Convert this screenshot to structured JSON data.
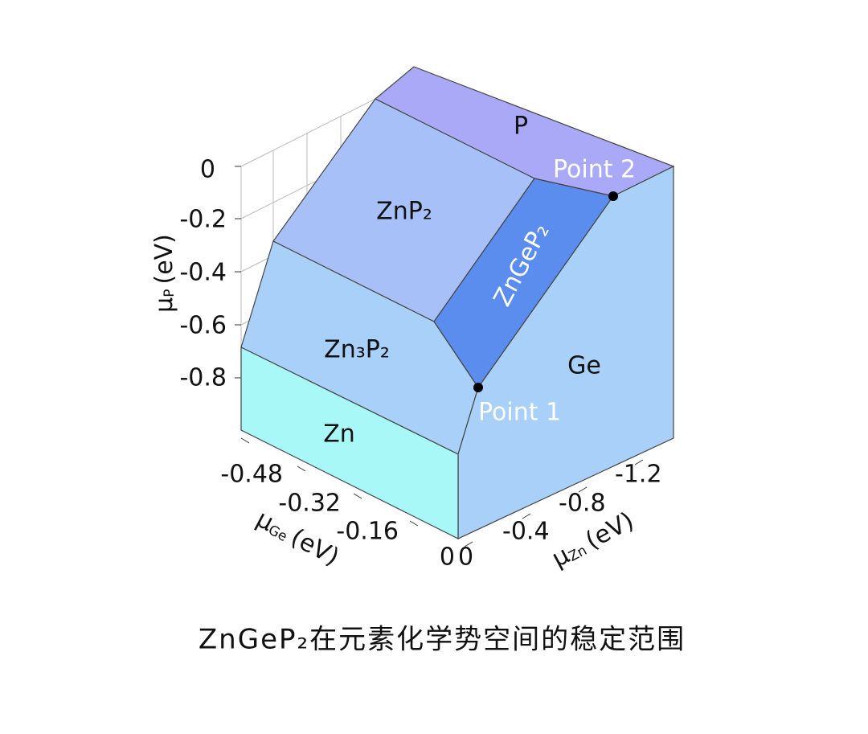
{
  "regions": {
    "P": "P",
    "ZnP2": "ZnP₂",
    "ZnGeP2": "ZnGeP₂",
    "Zn3P2": "Zn₃P₂",
    "Ge": "Ge",
    "Zn": "Zn"
  },
  "points": [
    "Point 1",
    "Point 2"
  ],
  "axes": {
    "p": {
      "symbol": "μ",
      "subscript": "P",
      "unit": "(eV)",
      "ticks": [
        "0",
        "-0.2",
        "-0.4",
        "-0.6",
        "-0.8"
      ]
    },
    "ge": {
      "symbol": "μ",
      "subscript": "Ge",
      "unit": "(eV)",
      "ticks": [
        "-0.48",
        "-0.32",
        "-0.16",
        "0"
      ]
    },
    "zn": {
      "symbol": "μ",
      "subscript": "Zn",
      "unit": "(eV)",
      "ticks": [
        "0",
        "-0.4",
        "-0.8",
        "-1.2"
      ]
    }
  },
  "caption": "ZnGeP₂在元素化学势空间的稳定范围"
}
